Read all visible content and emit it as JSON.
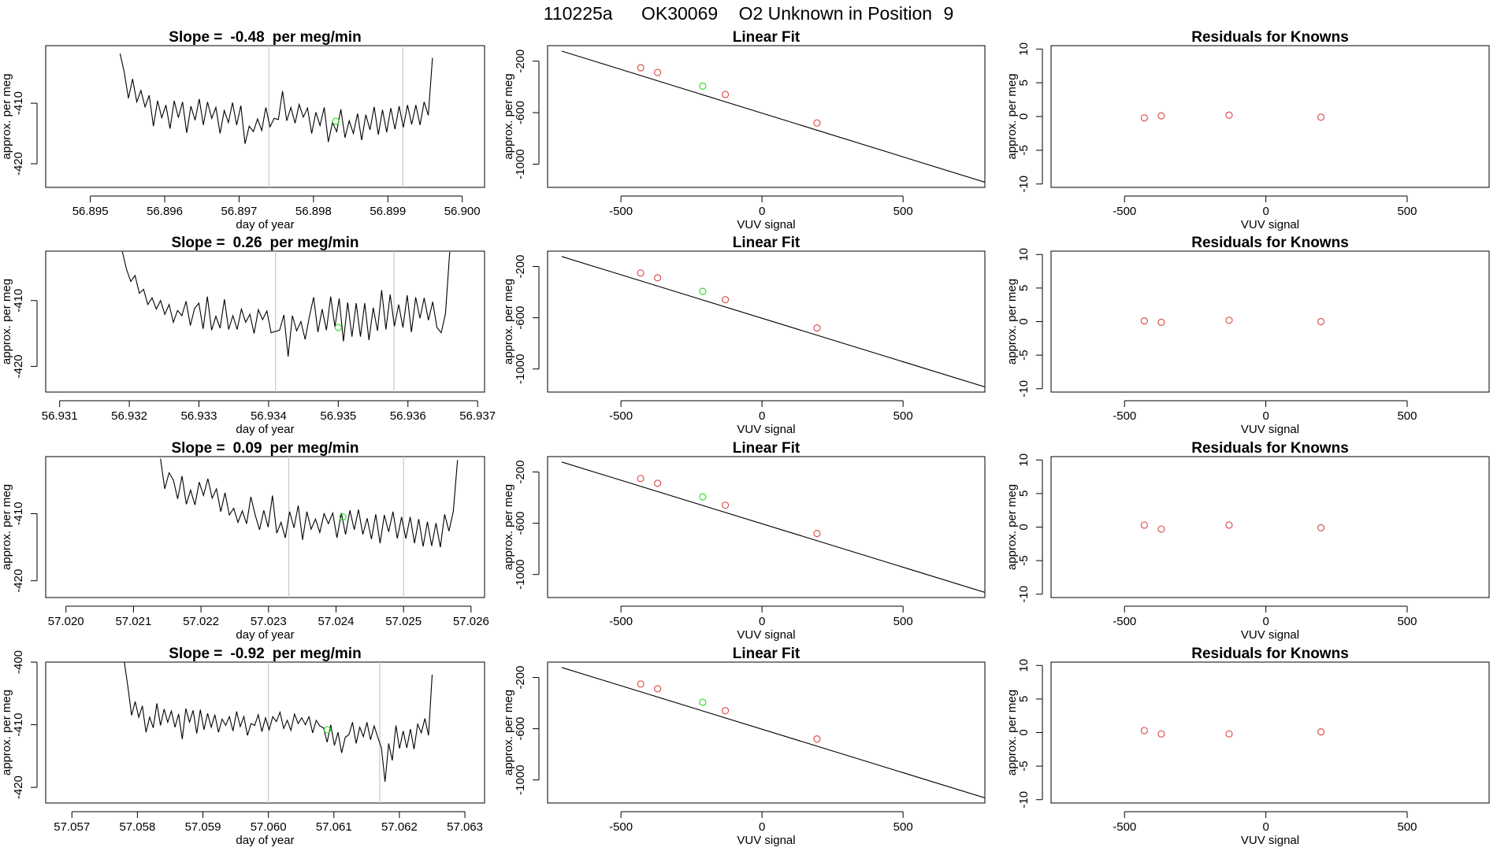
{
  "title": {
    "run": "110225a",
    "tank": "OK30069",
    "label": "O2 Unknown in Position",
    "position": "9"
  },
  "colors": {
    "known": "#d9534f",
    "unknown": "#33dd33",
    "line": "#000000",
    "marker": "#c8c8c8"
  },
  "chart_data": [
    {
      "type": "line",
      "title_prefix": "Slope =",
      "slope": "-0.48",
      "title_suffix": "per meg/min",
      "xlabel": "day of year",
      "ylabel": "approx. per meg",
      "xlim": [
        56.8944,
        56.9003
      ],
      "ylim": [
        -423.9,
        -400.5
      ],
      "xticks": [
        "56.895",
        "56.896",
        "56.897",
        "56.898",
        "56.899",
        "56.900"
      ],
      "yticks": [
        "-410",
        "-420"
      ],
      "markers_x": [
        56.8974,
        56.8992
      ],
      "unknown_point": [
        56.8983,
        -413.0
      ],
      "series_start": 56.8954,
      "series_end": 56.8996,
      "series_y": [
        -401.8,
        -404.9,
        -409.2,
        -406.0,
        -409.8,
        -407.9,
        -410.6,
        -408.7,
        -413.8,
        -409.6,
        -412.4,
        -410.3,
        -414.2,
        -409.6,
        -412.4,
        -409.8,
        -414.9,
        -410.5,
        -412.8,
        -409.3,
        -413.6,
        -409.8,
        -412.5,
        -410.7,
        -415.0,
        -411.2,
        -413.2,
        -409.9,
        -413.6,
        -410.4,
        -416.7,
        -413.8,
        -414.7,
        -412.6,
        -414.5,
        -410.7,
        -413.9,
        -412.5,
        -412.7,
        -408.0,
        -412.9,
        -410.7,
        -413.3,
        -410.2,
        -412.3,
        -410.8,
        -415.0,
        -411.5,
        -413.7,
        -410.7,
        -416.4,
        -413.2,
        -414.7,
        -411.0,
        -415.7,
        -412.9,
        -415.0,
        -411.7,
        -416.1,
        -411.9,
        -414.4,
        -410.6,
        -415.2,
        -411.1,
        -414.8,
        -410.8,
        -414.3,
        -410.5,
        -414.0,
        -410.3,
        -413.5,
        -410.3,
        -413.6,
        -409.8,
        -412.0,
        -402.5
      ]
    },
    {
      "type": "scatter",
      "title": "Linear Fit",
      "xlabel": "VUV signal",
      "ylabel": "approx. per meg",
      "xlim": [
        -760,
        790
      ],
      "ylim": [
        -1180,
        -80
      ],
      "xticks": [
        -500,
        0,
        500
      ],
      "yticks": [
        -200,
        -600,
        -1000
      ],
      "fit_line": {
        "x": [
          -710,
          790
        ],
        "y": [
          -122,
          -1140
        ]
      },
      "knowns": [
        [
          -430,
          -251
        ],
        [
          -370,
          -288
        ],
        [
          -130,
          -459
        ],
        [
          195,
          -680
        ]
      ],
      "unknown": [
        [
          -210,
          -394
        ]
      ]
    },
    {
      "type": "scatter",
      "title": "Residuals for Knowns",
      "xlabel": "VUV signal",
      "ylabel": "approx. per meg",
      "xlim": [
        -760,
        790
      ],
      "ylim": [
        -10.5,
        10.5
      ],
      "xticks": [
        -500,
        0,
        500
      ],
      "yticks": [
        10,
        5,
        0,
        -5,
        -10
      ],
      "residuals": [
        [
          -430,
          -0.2
        ],
        [
          -370,
          0.1
        ],
        [
          -130,
          0.2
        ],
        [
          195,
          -0.1
        ]
      ]
    },
    {
      "type": "line",
      "title_prefix": "Slope =",
      "slope": "0.26",
      "title_suffix": "per meg/min",
      "xlabel": "day of year",
      "ylabel": "approx. per meg",
      "xlim": [
        56.9308,
        56.9371
      ],
      "ylim": [
        -423.9,
        -402.5
      ],
      "xticks": [
        "56.931",
        "56.932",
        "56.933",
        "56.934",
        "56.935",
        "56.936",
        "56.937"
      ],
      "yticks": [
        "-410",
        "-420"
      ],
      "markers_x": [
        56.9341,
        56.9358
      ],
      "unknown_point": [
        56.935,
        -414.1
      ],
      "series_start": 56.9319,
      "series_end": 56.9366,
      "series_y": [
        -402.6,
        -405.3,
        -407.1,
        -406.2,
        -408.9,
        -408.3,
        -410.6,
        -409.6,
        -411.3,
        -410.0,
        -412.1,
        -410.6,
        -413.3,
        -411.5,
        -412.3,
        -410.1,
        -413.8,
        -411.2,
        -410.4,
        -414.3,
        -409.4,
        -414.5,
        -412.4,
        -414.2,
        -409.8,
        -414.4,
        -412.3,
        -414.4,
        -411.3,
        -413.3,
        -412.1,
        -415.0,
        -411.4,
        -412.9,
        -411.6,
        -414.9,
        -414.7,
        -414.5,
        -412.2,
        -418.5,
        -412.3,
        -414.6,
        -413.2,
        -415.9,
        -412.4,
        -409.5,
        -414.8,
        -411.3,
        -414.5,
        -409.4,
        -414.0,
        -409.7,
        -416.2,
        -410.3,
        -415.5,
        -410.4,
        -415.5,
        -410.4,
        -416.0,
        -411.1,
        -414.6,
        -408.4,
        -414.4,
        -409.1,
        -413.9,
        -410.6,
        -414.1,
        -409.2,
        -414.8,
        -409.5,
        -412.7,
        -409.6,
        -413.0,
        -410.2,
        -414.1,
        -414.9,
        -412.0,
        -402.6
      ]
    },
    {
      "type": "scatter",
      "title": "Linear Fit",
      "xlabel": "VUV signal",
      "ylabel": "approx. per meg",
      "xlim": [
        -760,
        790
      ],
      "ylim": [
        -1180,
        -80
      ],
      "xticks": [
        -500,
        0,
        500
      ],
      "yticks": [
        -200,
        -600,
        -1000
      ],
      "fit_line": {
        "x": [
          -710,
          790
        ],
        "y": [
          -122,
          -1140
        ]
      },
      "knowns": [
        [
          -430,
          -251
        ],
        [
          -370,
          -288
        ],
        [
          -130,
          -459
        ],
        [
          195,
          -680
        ]
      ],
      "unknown": [
        [
          -210,
          -394
        ]
      ]
    },
    {
      "type": "scatter",
      "title": "Residuals for Knowns",
      "xlabel": "VUV signal",
      "ylabel": "approx. per meg",
      "xlim": [
        -760,
        790
      ],
      "ylim": [
        -10.5,
        10.5
      ],
      "xticks": [
        -500,
        0,
        500
      ],
      "yticks": [
        10,
        5,
        0,
        -5,
        -10
      ],
      "residuals": [
        [
          -430,
          0.1
        ],
        [
          -370,
          -0.1
        ],
        [
          -130,
          0.2
        ],
        [
          195,
          0.0
        ]
      ]
    },
    {
      "type": "line",
      "title_prefix": "Slope =",
      "slope": "0.09",
      "title_suffix": "per meg/min",
      "xlabel": "day of year",
      "ylabel": "approx. per meg",
      "xlim": [
        57.0197,
        57.0262
      ],
      "ylim": [
        -422.5,
        -401.5
      ],
      "xticks": [
        "57.020",
        "57.021",
        "57.022",
        "57.023",
        "57.024",
        "57.025",
        "57.026"
      ],
      "yticks": [
        "-410",
        "-420"
      ],
      "markers_x": [
        57.0233,
        57.025
      ],
      "unknown_point": [
        57.0241,
        -410.5
      ],
      "series_start": 57.0214,
      "series_end": 57.0258,
      "series_y": [
        -401.8,
        -406.3,
        -403.9,
        -405.0,
        -407.8,
        -404.4,
        -408.6,
        -406.5,
        -408.7,
        -405.3,
        -407.3,
        -404.8,
        -407.7,
        -406.3,
        -409.7,
        -406.9,
        -410.2,
        -409.2,
        -411.3,
        -409.6,
        -411.5,
        -407.5,
        -410.2,
        -412.4,
        -409.5,
        -412.0,
        -407.3,
        -412.9,
        -411.3,
        -413.6,
        -409.7,
        -412.1,
        -408.8,
        -413.9,
        -409.7,
        -412.3,
        -410.8,
        -412.8,
        -410.0,
        -411.5,
        -409.9,
        -413.6,
        -409.9,
        -413.1,
        -409.5,
        -412.4,
        -409.4,
        -413.1,
        -410.7,
        -413.8,
        -410.1,
        -414.4,
        -410.2,
        -412.7,
        -409.7,
        -413.7,
        -410.5,
        -413.7,
        -410.5,
        -414.4,
        -410.8,
        -414.9,
        -411.2,
        -414.8,
        -411.4,
        -415.0,
        -410.1,
        -412.6,
        -409.7,
        -402.0
      ]
    },
    {
      "type": "scatter",
      "title": "Linear Fit",
      "xlabel": "VUV signal",
      "ylabel": "approx. per meg",
      "xlim": [
        -760,
        790
      ],
      "ylim": [
        -1180,
        -80
      ],
      "xticks": [
        -500,
        0,
        500
      ],
      "yticks": [
        -200,
        -600,
        -1000
      ],
      "fit_line": {
        "x": [
          -710,
          790
        ],
        "y": [
          -122,
          -1140
        ]
      },
      "knowns": [
        [
          -430,
          -251
        ],
        [
          -370,
          -288
        ],
        [
          -130,
          -459
        ],
        [
          195,
          -680
        ]
      ],
      "unknown": [
        [
          -210,
          -394
        ]
      ]
    },
    {
      "type": "scatter",
      "title": "Residuals for Knowns",
      "xlabel": "VUV signal",
      "ylabel": "approx. per meg",
      "xlim": [
        -760,
        790
      ],
      "ylim": [
        -10.5,
        10.5
      ],
      "xticks": [
        -500,
        0,
        500
      ],
      "yticks": [
        10,
        5,
        0,
        -5,
        -10
      ],
      "residuals": [
        [
          -430,
          0.3
        ],
        [
          -370,
          -0.3
        ],
        [
          -130,
          0.3
        ],
        [
          195,
          -0.1
        ]
      ]
    },
    {
      "type": "line",
      "title_prefix": "Slope =",
      "slope": "-0.92",
      "title_suffix": "per meg/min",
      "xlabel": "day of year",
      "ylabel": "approx. per meg",
      "xlim": [
        57.0566,
        57.0633
      ],
      "ylim": [
        -422.5,
        -400.0
      ],
      "xticks": [
        "57.057",
        "57.058",
        "57.059",
        "57.060",
        "57.061",
        "57.062",
        "57.063"
      ],
      "yticks": [
        "-400",
        "-410",
        "-420"
      ],
      "markers_x": [
        57.06,
        57.0617
      ],
      "unknown_point": [
        57.0609,
        -410.8
      ],
      "series_start": 57.0578,
      "series_end": 57.0625,
      "series_y": [
        -400.0,
        -404.0,
        -408.5,
        -406.3,
        -408.8,
        -407.0,
        -411.2,
        -408.8,
        -410.5,
        -406.6,
        -410.1,
        -407.5,
        -409.6,
        -407.8,
        -410.4,
        -408.3,
        -412.3,
        -407.4,
        -409.6,
        -407.7,
        -411.4,
        -407.6,
        -410.8,
        -408.2,
        -410.4,
        -408.4,
        -411.2,
        -409.1,
        -410.1,
        -408.7,
        -411.0,
        -407.9,
        -410.3,
        -408.7,
        -411.7,
        -409.8,
        -410.1,
        -408.4,
        -411.1,
        -408.9,
        -410.8,
        -408.7,
        -409.5,
        -408.0,
        -410.6,
        -409.3,
        -410.9,
        -408.3,
        -409.8,
        -408.9,
        -410.0,
        -408.7,
        -411.3,
        -409.3,
        -410.2,
        -410.5,
        -412.8,
        -410.0,
        -413.3,
        -411.2,
        -414.5,
        -412.0,
        -411.6,
        -409.6,
        -413.0,
        -410.4,
        -411.9,
        -409.6,
        -412.4,
        -410.2,
        -412.0,
        -413.7,
        -419.1,
        -413.0,
        -415.7,
        -410.1,
        -413.8,
        -411.0,
        -413.7,
        -410.7,
        -413.9,
        -409.9,
        -411.3,
        -409.0,
        -411.7,
        -402.0
      ]
    },
    {
      "type": "scatter",
      "title": "Linear Fit",
      "xlabel": "VUV signal",
      "ylabel": "approx. per meg",
      "xlim": [
        -760,
        790
      ],
      "ylim": [
        -1180,
        -80
      ],
      "xticks": [
        -500,
        0,
        500
      ],
      "yticks": [
        -200,
        -600,
        -1000
      ],
      "fit_line": {
        "x": [
          -710,
          790
        ],
        "y": [
          -122,
          -1140
        ]
      },
      "knowns": [
        [
          -430,
          -251
        ],
        [
          -370,
          -288
        ],
        [
          -130,
          -459
        ],
        [
          195,
          -680
        ]
      ],
      "unknown": [
        [
          -210,
          -394
        ]
      ]
    },
    {
      "type": "scatter",
      "title": "Residuals for Knowns",
      "xlabel": "VUV signal",
      "ylabel": "approx. per meg",
      "xlim": [
        -760,
        790
      ],
      "ylim": [
        -10.5,
        10.5
      ],
      "xticks": [
        -500,
        0,
        500
      ],
      "yticks": [
        10,
        5,
        0,
        -5,
        -10
      ],
      "residuals": [
        [
          -430,
          0.3
        ],
        [
          -370,
          -0.2
        ],
        [
          -130,
          -0.2
        ],
        [
          195,
          0.1
        ]
      ]
    }
  ]
}
